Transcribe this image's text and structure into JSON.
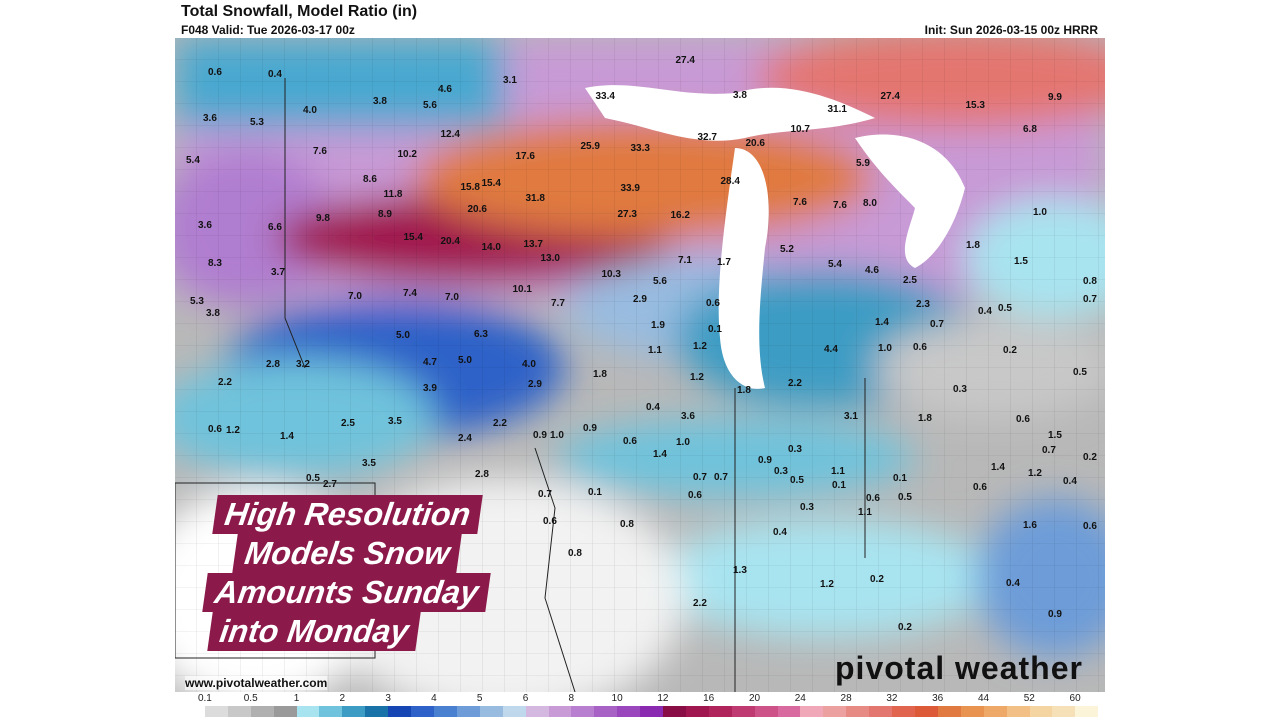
{
  "header": {
    "title": "Total Snowfall, Model Ratio (in)",
    "valid": "F048 Valid: Tue 2026-03-17 00z",
    "init": "Init: Sun 2026-03-15 00z HRRR"
  },
  "overlay": {
    "lines": [
      "High Resolution",
      "Models Snow",
      "Amounts Sunday",
      "into Monday"
    ]
  },
  "footer": {
    "url": "www.pivotalweather.com",
    "logo": "pivotal weather"
  },
  "legend": {
    "ticks": [
      "0.1",
      "0.5",
      "1",
      "2",
      "3",
      "4",
      "5",
      "6",
      "8",
      "10",
      "12",
      "16",
      "20",
      "24",
      "28",
      "32",
      "36",
      "44",
      "52",
      "60"
    ],
    "colors": [
      "#ffffff",
      "#dcdcdc",
      "#c8c8c8",
      "#b0b0b0",
      "#9a9a9a",
      "#a8e4f0",
      "#6fc3dc",
      "#3c9cc4",
      "#1a73a8",
      "#1646b4",
      "#2e62c8",
      "#4a80d0",
      "#6d9cd8",
      "#98bce0",
      "#c0d8ec",
      "#d4b8e0",
      "#c89ad6",
      "#b87ed0",
      "#a862c6",
      "#9a46bc",
      "#8a2ab0",
      "#8a0e46",
      "#a0164e",
      "#b0245c",
      "#c03a72",
      "#cc5288",
      "#d86aa0",
      "#f0a8b8",
      "#eca0a0",
      "#e88a84",
      "#e47670",
      "#e0644e",
      "#dc5a38",
      "#e07a40",
      "#e89450",
      "#eea868",
      "#f2c084",
      "#f4d4a0",
      "#f6e0b8",
      "#fcf4d8"
    ]
  },
  "map": {
    "values": [
      "0.6",
      "0.4",
      "4.6",
      "3.1",
      "3.6",
      "5.3",
      "4.0",
      "3.8",
      "5.6",
      "33.4",
      "27.4",
      "3.8",
      "31.1",
      "27.4",
      "15.3",
      "9.9",
      "5.4",
      "7.6",
      "10.2",
      "12.4",
      "17.6",
      "25.9",
      "33.3",
      "32.7",
      "10.7",
      "20.6",
      "6.8",
      "5.9",
      "7.6",
      "8.6",
      "11.8",
      "15.8",
      "15.4",
      "33.9",
      "28.4",
      "3.6",
      "6.6",
      "9.8",
      "8.9",
      "20.6",
      "31.8",
      "27.3",
      "16.2",
      "7.6",
      "8.0",
      "1.0",
      "8.3",
      "15.4",
      "20.4",
      "14.0",
      "13.7",
      "13.0",
      "7.1",
      "1.7",
      "5.2",
      "5.4",
      "4.6",
      "1.8",
      "1.5",
      "5.3",
      "3.7",
      "7.0",
      "7.4",
      "7.0",
      "10.1",
      "10.3",
      "5.6",
      "2.9",
      "0.6",
      "2.5",
      "2.3",
      "0.8",
      "3.8",
      "5.0",
      "6.3",
      "7.7",
      "1.9",
      "0.1",
      "1.4",
      "0.7",
      "0.4",
      "0.5",
      "0.7",
      "3.2",
      "4.7",
      "5.0",
      "4.0",
      "1.1",
      "1.2",
      "4.4",
      "1.0",
      "0.6",
      "0.2",
      "2.2",
      "2.8",
      "3.9",
      "2.9",
      "1.8",
      "1.2",
      "1.8",
      "2.2",
      "0.5",
      "0.6",
      "1.2",
      "1.4",
      "2.5",
      "3.5",
      "2.4",
      "2.2",
      "1.0",
      "0.9",
      "0.6",
      "3.6",
      "3.1",
      "0.3",
      "0.4",
      "1.0",
      "1.8",
      "0.6",
      "1.5",
      "3.5",
      "2.8",
      "1.4",
      "0.7",
      "0.9",
      "0.3",
      "1.1",
      "0.1",
      "0.3",
      "0.6",
      "0.4",
      "2.7",
      "0.5",
      "0.9",
      "0.7",
      "0.5",
      "0.1",
      "0.6",
      "0.3",
      "1.1",
      "0.6",
      "1.4",
      "1.2",
      "0.2",
      "0.1",
      "0.7",
      "0.6",
      "0.8",
      "0.5",
      "0.7",
      "1.6",
      "0.6",
      "0.8",
      "0.4",
      "1.2",
      "1.3",
      "2.2",
      "0.2",
      "0.4",
      "0.9",
      "0.2"
    ]
  }
}
